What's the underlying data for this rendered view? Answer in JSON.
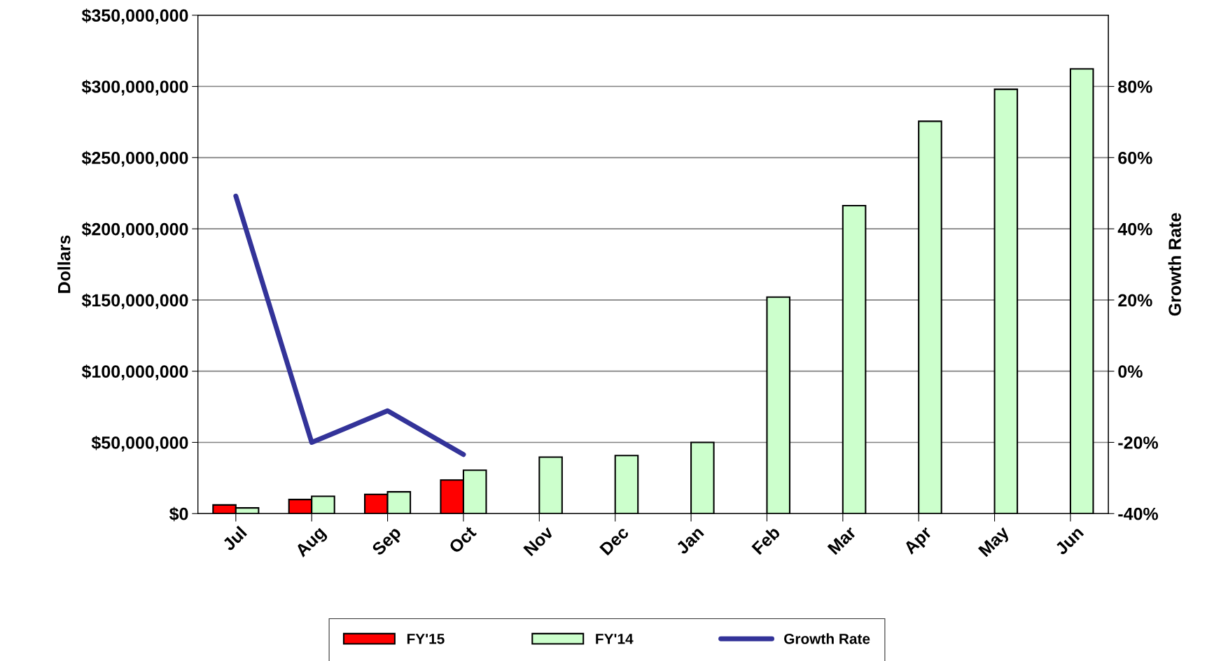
{
  "chart_data": {
    "type": "bar",
    "ylabel": "Dollars",
    "y2label": "Growth Rate",
    "categories": [
      "Jul",
      "Aug",
      "Sep",
      "Oct",
      "Nov",
      "Dec",
      "Jan",
      "Feb",
      "Mar",
      "Apr",
      "May",
      "Jun"
    ],
    "series": [
      {
        "name": "FY'15",
        "color": "#ff0000",
        "values": [
          6100000,
          9900000,
          13500000,
          23600000,
          null,
          null,
          null,
          null,
          null,
          null,
          null,
          null
        ]
      },
      {
        "name": "FY'14",
        "color": "#ccffcc",
        "values": [
          4000000,
          12200000,
          15300000,
          30500000,
          39700000,
          40800000,
          50000000,
          152000000,
          216300000,
          275500000,
          298000000,
          312300000
        ]
      },
      {
        "name": "Growth Rate",
        "type": "line",
        "axis": "y2",
        "color": "#333399",
        "values": [
          49.2,
          -20,
          -11.1,
          -23.4,
          null,
          null,
          null,
          null,
          null,
          null,
          null,
          null
        ]
      }
    ],
    "ylim": [
      0,
      350000000
    ],
    "yticks": [
      {
        "value": 0,
        "label": "$0"
      },
      {
        "value": 50000000,
        "label": "$50,000,000"
      },
      {
        "value": 100000000,
        "label": "$100,000,000"
      },
      {
        "value": 150000000,
        "label": "$150,000,000"
      },
      {
        "value": 200000000,
        "label": "$200,000,000"
      },
      {
        "value": 250000000,
        "label": "$250,000,000"
      },
      {
        "value": 300000000,
        "label": "$300,000,000"
      },
      {
        "value": 350000000,
        "label": "$350,000,000"
      }
    ],
    "y2lim": [
      -40,
      100
    ],
    "y2ticks": [
      {
        "value": -40,
        "label": "-40%"
      },
      {
        "value": -20,
        "label": "-20%"
      },
      {
        "value": 0,
        "label": "0%"
      },
      {
        "value": 20,
        "label": "20%"
      },
      {
        "value": 40,
        "label": "40%"
      },
      {
        "value": 60,
        "label": "60%"
      },
      {
        "value": 80,
        "label": "80%"
      }
    ],
    "grid": "y",
    "legend": "bottom"
  }
}
